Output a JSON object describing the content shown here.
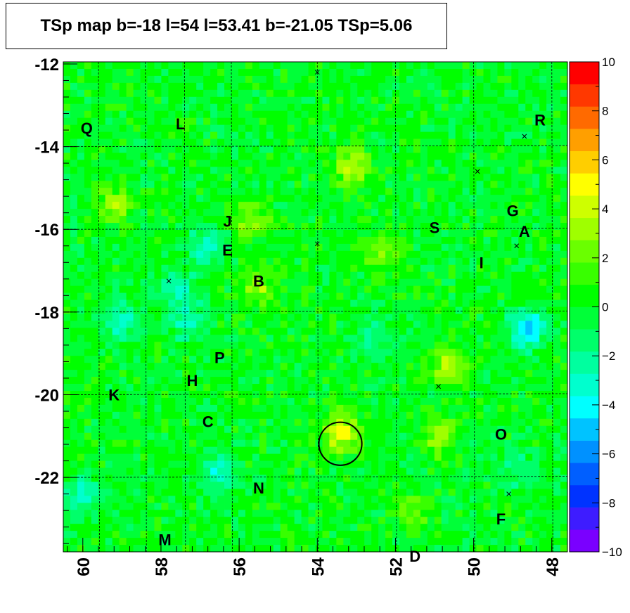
{
  "title": "TSp map b=-18 l=54 l=53.41 b=-21.05 TSp=5.06",
  "chart_data": {
    "type": "heatmap",
    "xlim": [
      60.5,
      47.6
    ],
    "ylim": [
      -23.8,
      -11.95
    ],
    "x_axis_reversed": true,
    "x_ticks": [
      "60",
      "58",
      "56",
      "54",
      "52",
      "50",
      "48"
    ],
    "x_tick_values": [
      60,
      58,
      56,
      54,
      52,
      50,
      48
    ],
    "y_ticks": [
      "-12",
      "-14",
      "-16",
      "-18",
      "-20",
      "-22"
    ],
    "y_tick_values": [
      -12,
      -14,
      -16,
      -18,
      -20,
      -22
    ],
    "colorbar": {
      "min": -10,
      "max": 10,
      "ticks": [
        "10",
        "8",
        "6",
        "4",
        "2",
        "0",
        "−2",
        "−4",
        "−6",
        "−8",
        "−10"
      ],
      "tick_values": [
        10,
        8,
        6,
        4,
        2,
        0,
        -2,
        -4,
        -6,
        -8,
        -10
      ],
      "colors": [
        "#7a00ff",
        "#3e1cff",
        "#0033ff",
        "#005fff",
        "#0091ff",
        "#00c3ff",
        "#00ffff",
        "#00ffce",
        "#00ff9f",
        "#00ff6a",
        "#00ff38",
        "#00ff00",
        "#38ff00",
        "#6aff00",
        "#9fff00",
        "#ceff00",
        "#ffff00",
        "#ffce00",
        "#ff9f00",
        "#ff6a00",
        "#ff3800",
        "#ff0000"
      ]
    },
    "background_level": 0,
    "hotspots": [
      {
        "l": 53.4,
        "b": -20.9,
        "value": 5
      },
      {
        "l": 53.1,
        "b": -14.5,
        "value": 4
      },
      {
        "l": 52.3,
        "b": -16.5,
        "value": 3
      },
      {
        "l": 50.6,
        "b": -19.3,
        "value": 4
      },
      {
        "l": 55.5,
        "b": -17.4,
        "value": 3
      },
      {
        "l": 55.7,
        "b": -15.8,
        "value": 3
      },
      {
        "l": 59.2,
        "b": -15.4,
        "value": 3
      },
      {
        "l": 50.9,
        "b": -21.0,
        "value": 3
      },
      {
        "l": 51.6,
        "b": -22.8,
        "value": 2
      },
      {
        "l": 48.6,
        "b": -18.4,
        "value": -5
      },
      {
        "l": 59.0,
        "b": -18.2,
        "value": -3
      },
      {
        "l": 57.3,
        "b": -18.2,
        "value": -3
      },
      {
        "l": 56.8,
        "b": -16.4,
        "value": -3
      },
      {
        "l": 57.6,
        "b": -17.4,
        "value": -3
      },
      {
        "l": 60.0,
        "b": -22.4,
        "value": -3
      },
      {
        "l": 56.6,
        "b": -21.9,
        "value": -3
      },
      {
        "l": 49.0,
        "b": -21.8,
        "value": -2
      },
      {
        "l": 52.5,
        "b": -18.5,
        "value": -2
      }
    ],
    "source_circle": {
      "l": 53.41,
      "b": -21.05,
      "radius_deg": 0.55
    },
    "markers": [
      {
        "label": "Q",
        "l": 59.9,
        "b": -13.55
      },
      {
        "label": "L",
        "l": 57.5,
        "b": -13.45
      },
      {
        "label": "R",
        "l": 48.3,
        "b": -13.35
      },
      {
        "label": "G",
        "l": 49.0,
        "b": -15.55
      },
      {
        "label": "J",
        "l": 56.3,
        "b": -15.8
      },
      {
        "label": "S",
        "l": 51.0,
        "b": -15.95
      },
      {
        "label": "A",
        "l": 48.7,
        "b": -16.05
      },
      {
        "label": "E",
        "l": 56.3,
        "b": -16.5
      },
      {
        "label": "I",
        "l": 49.8,
        "b": -16.8
      },
      {
        "label": "B",
        "l": 55.5,
        "b": -17.25
      },
      {
        "label": "P",
        "l": 56.5,
        "b": -19.1
      },
      {
        "label": "H",
        "l": 57.2,
        "b": -19.65
      },
      {
        "label": "K",
        "l": 59.2,
        "b": -20.0
      },
      {
        "label": "C",
        "l": 56.8,
        "b": -20.65
      },
      {
        "label": "O",
        "l": 49.3,
        "b": -20.95
      },
      {
        "label": "N",
        "l": 55.5,
        "b": -22.25
      },
      {
        "label": "F",
        "l": 49.3,
        "b": -23.0
      },
      {
        "label": "M",
        "l": 57.9,
        "b": -23.5
      },
      {
        "label": "D",
        "l": 51.5,
        "b": -23.9
      }
    ],
    "cross_marks": [
      {
        "l": 54.0,
        "b": -12.2
      },
      {
        "l": 48.7,
        "b": -13.75
      },
      {
        "l": 49.9,
        "b": -14.6
      },
      {
        "l": 54.0,
        "b": -16.35
      },
      {
        "l": 48.9,
        "b": -16.4
      },
      {
        "l": 57.8,
        "b": -17.25
      },
      {
        "l": 50.9,
        "b": -19.8
      },
      {
        "l": 49.1,
        "b": -22.4
      }
    ],
    "grid_l": [
      59.6,
      58.4,
      57.4,
      56.2,
      54.0,
      52.0,
      50.0,
      48.0
    ],
    "grid_b": [
      -14.0,
      -16.0,
      -18.0,
      -20.0,
      -22.0
    ]
  }
}
